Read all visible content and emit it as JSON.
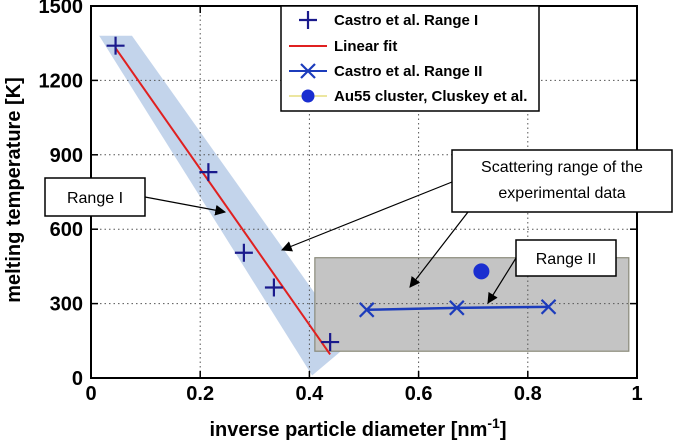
{
  "chart_data": {
    "type": "scatter",
    "xlabel": "inverse particle diameter [nm",
    "xlabel_superscript": "-1",
    "xlabel_suffix": "]",
    "ylabel": "melting temperature [K]",
    "xlim": [
      0,
      1
    ],
    "ylim": [
      0,
      1500
    ],
    "x_ticks": [
      0,
      0.2,
      0.4,
      0.6,
      0.8,
      1
    ],
    "x_tick_labels": [
      "0",
      "0.2",
      "0.4",
      "0.6",
      "0.8",
      "1"
    ],
    "y_ticks": [
      0,
      300,
      600,
      900,
      1200,
      1500
    ],
    "y_tick_labels": [
      "0",
      "300",
      "600",
      "900",
      "1200",
      "1500"
    ],
    "series": [
      {
        "name": "Castro et al. Range I",
        "marker": "plus",
        "color": "#1a1a8c",
        "x": [
          0.045,
          0.215,
          0.28,
          0.335,
          0.438
        ],
        "y": [
          1340,
          830,
          505,
          365,
          145
        ]
      },
      {
        "name": "Linear fit",
        "marker": "line",
        "color": "#e02020",
        "x": [
          0.045,
          0.438
        ],
        "y": [
          1330,
          95
        ]
      },
      {
        "name": "Castro et al. Range II",
        "marker": "x",
        "color": "#1c3cbc",
        "x": [
          0.505,
          0.67,
          0.838
        ],
        "y": [
          275,
          283,
          287
        ]
      },
      {
        "name": "Au55 cluster, Cluskey et al.",
        "marker": "circle",
        "color": "#1a2ed0",
        "x": [
          0.715
        ],
        "y": [
          430
        ]
      }
    ],
    "regions": [
      {
        "name": "range-i-band",
        "color": "#b8cce8",
        "points": [
          [
            0.015,
            1380
          ],
          [
            0.075,
            1380
          ],
          [
            0.475,
            140
          ],
          [
            0.405,
            10
          ]
        ]
      },
      {
        "name": "scatter-range-box",
        "color": "#c4c4c4",
        "x": [
          0.41,
          0.985
        ],
        "y": [
          108,
          485
        ]
      }
    ],
    "annotations": [
      {
        "label_lines": [
          "Range I"
        ]
      },
      {
        "label_lines": [
          "Scattering range of the",
          "experimental data"
        ]
      },
      {
        "label_lines": [
          "Range II"
        ]
      }
    ]
  }
}
